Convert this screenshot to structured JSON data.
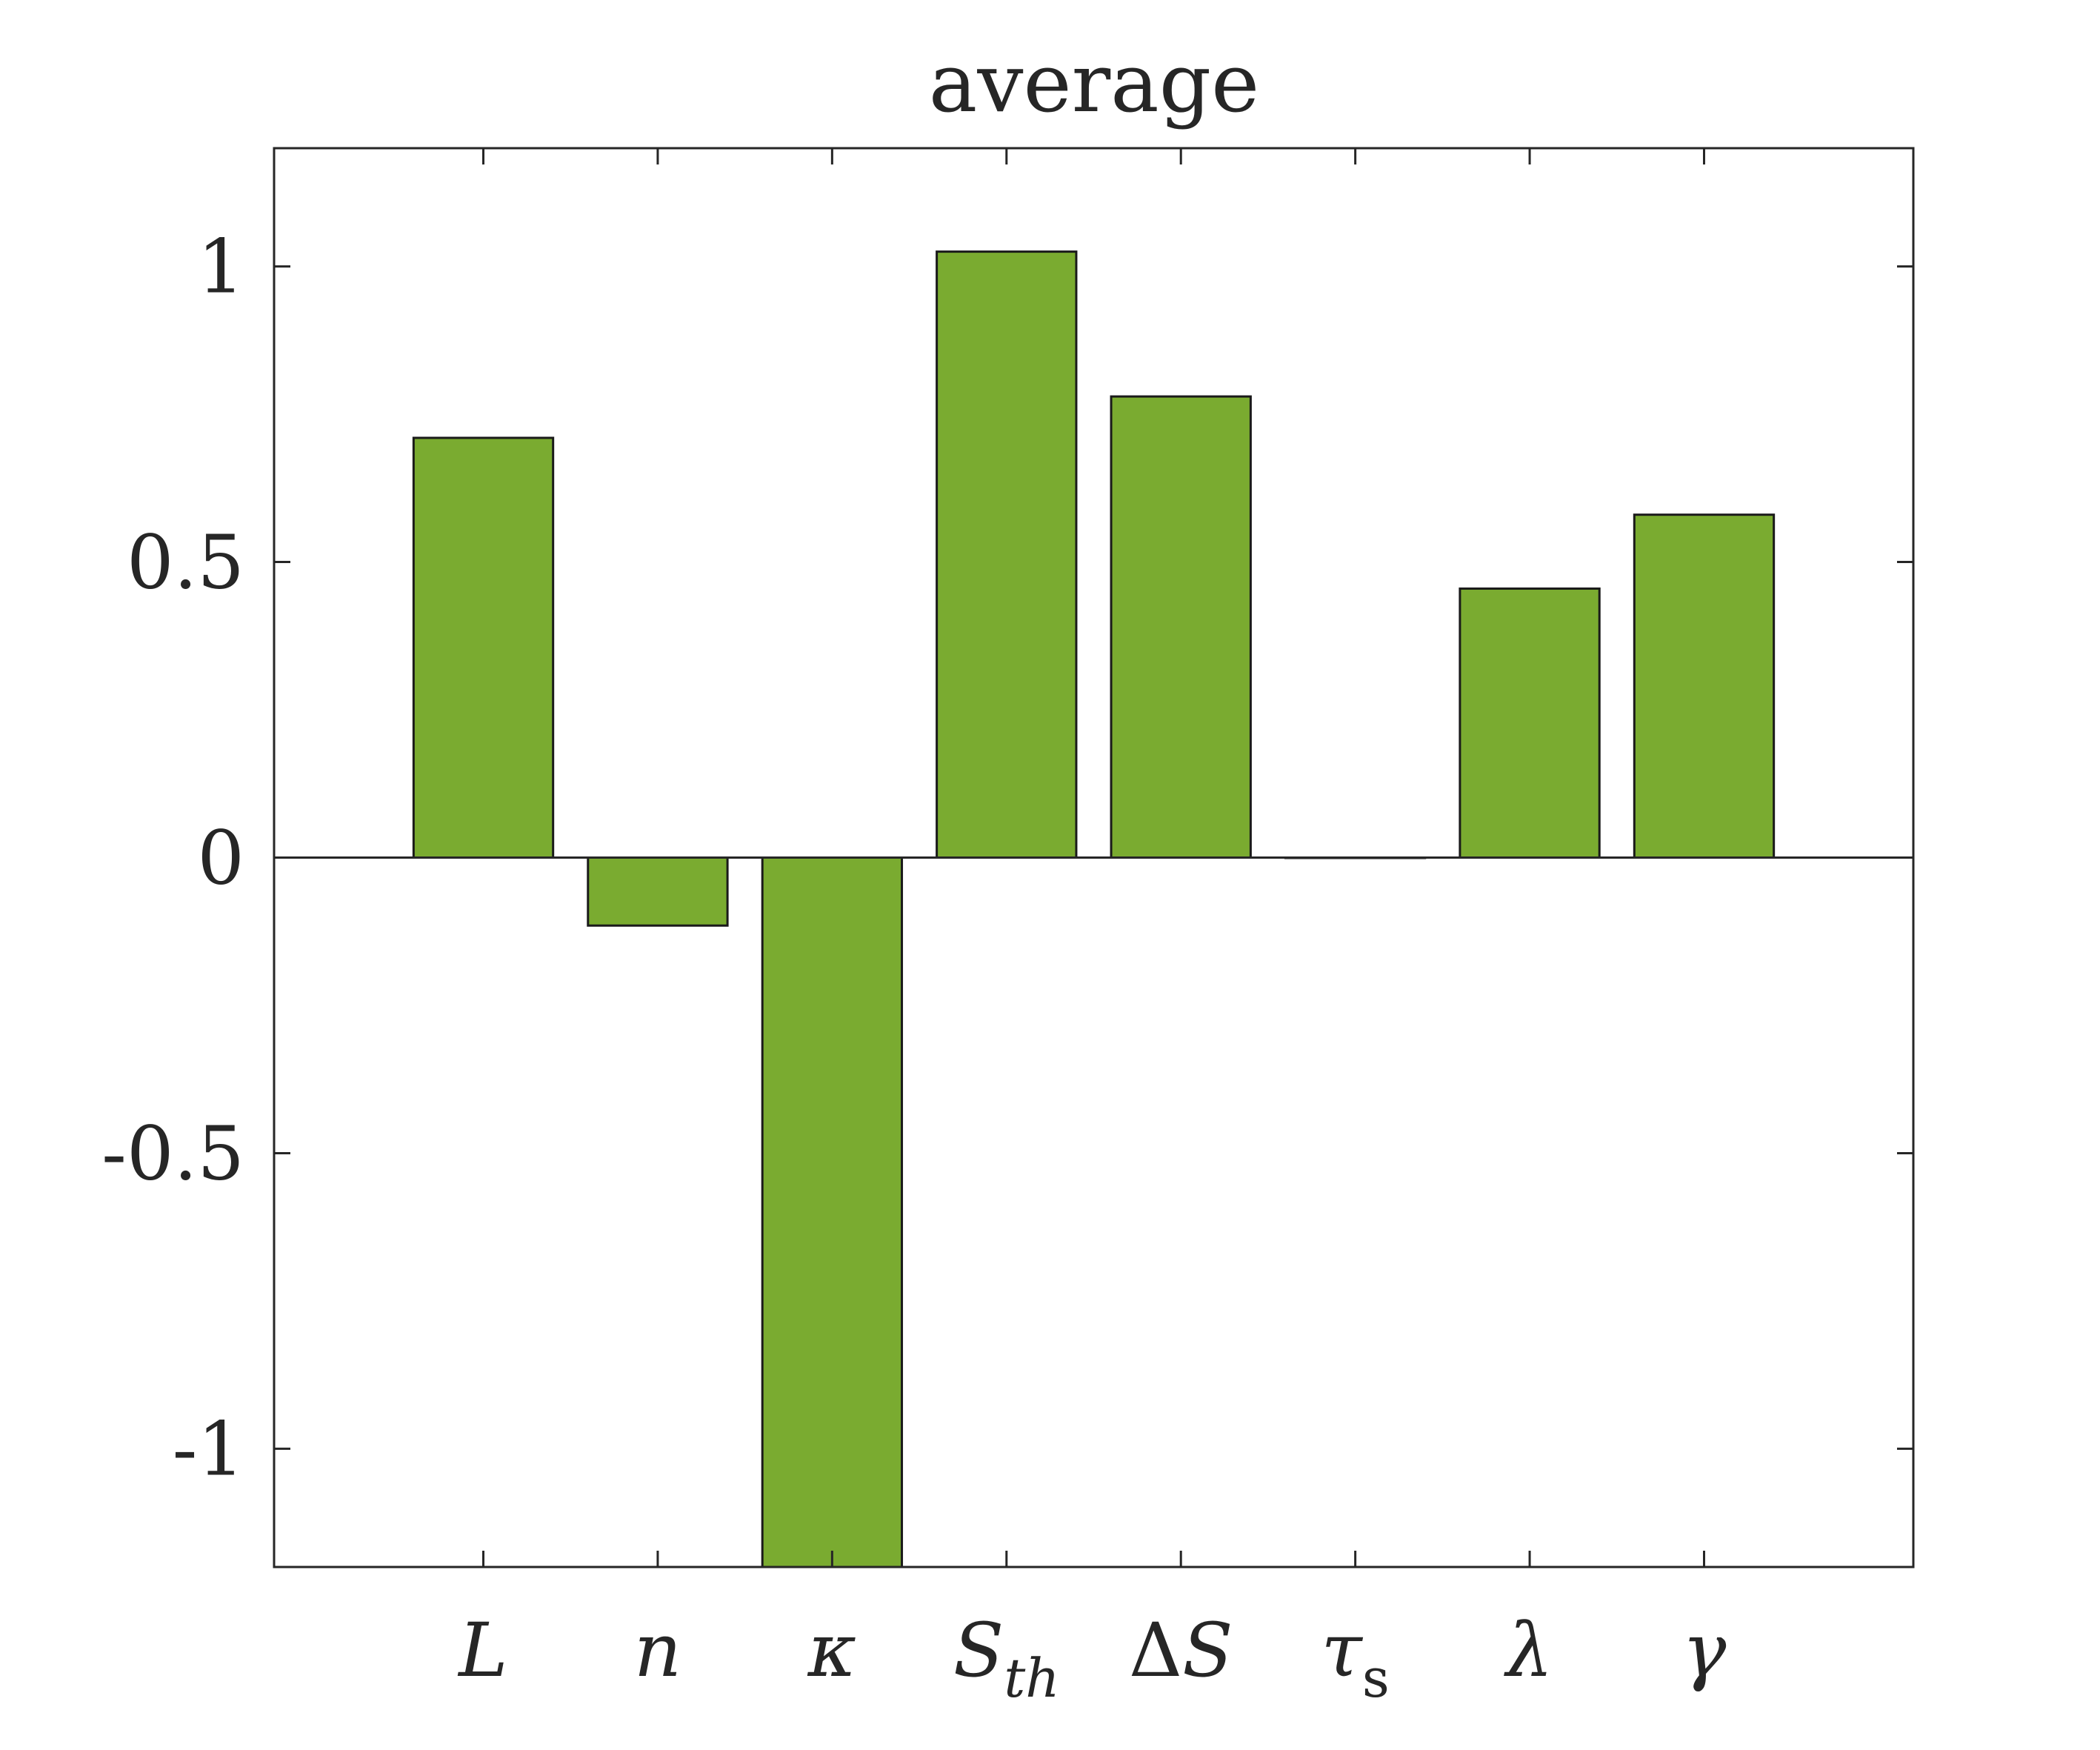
{
  "chart_data": {
    "type": "bar",
    "title": "average",
    "xlabel": "",
    "ylabel": "",
    "categories": [
      {
        "base": "L",
        "sub": ""
      },
      {
        "base": "n",
        "sub": ""
      },
      {
        "base": "κ",
        "sub": ""
      },
      {
        "base": "S",
        "sub": "th"
      },
      {
        "base": "ΔS",
        "sub": ""
      },
      {
        "base": "τ",
        "sub": "s"
      },
      {
        "base": "λ",
        "sub": ""
      },
      {
        "base": "γ",
        "sub": ""
      }
    ],
    "values": [
      0.71,
      -0.115,
      -1.2,
      1.025,
      0.78,
      0.0,
      0.455,
      0.58
    ],
    "ylim": [
      -1.2,
      1.2
    ],
    "yticks": [
      1,
      0.5,
      0,
      -0.5,
      -1
    ],
    "ytick_labels": [
      "1",
      "0.5",
      "0",
      "-0.5",
      "-1"
    ],
    "xlim": [
      -0.2,
      9.2
    ],
    "grid": false,
    "legend": "none",
    "colors": {
      "bar_fill": "#7aab30",
      "bar_edge": "#1a1a1a",
      "axis": "#262626"
    }
  }
}
